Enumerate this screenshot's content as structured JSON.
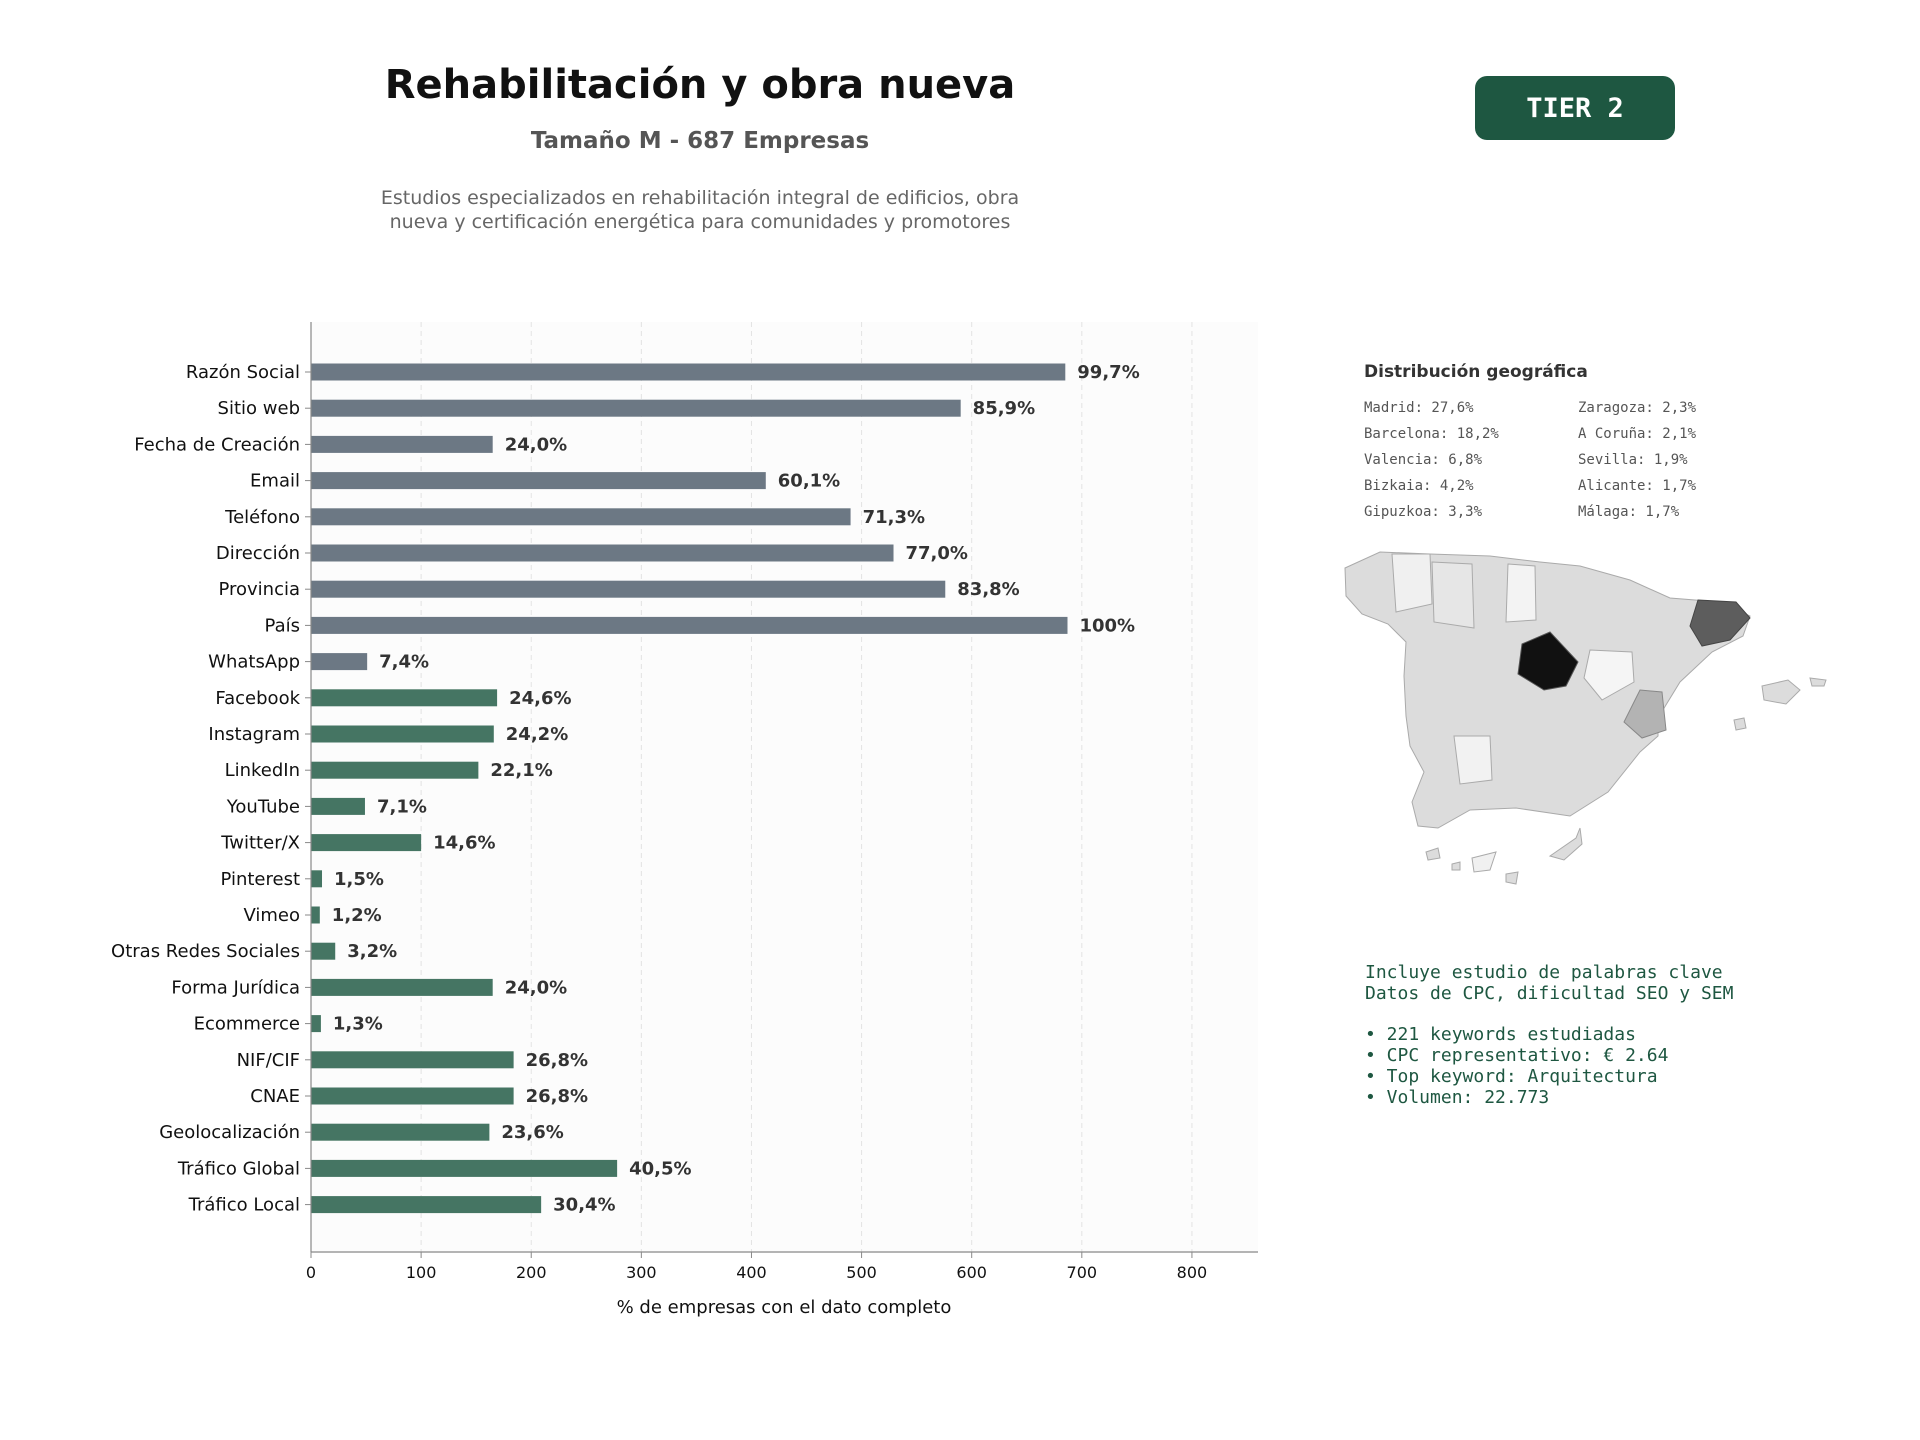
{
  "header": {
    "title": "Rehabilitación y obra nueva",
    "subtitle": "Tamaño M - 687 Empresas",
    "description_line1": "Estudios especializados en rehabilitación integral de edificios, obra",
    "description_line2": "nueva y certificación energética para comunidades y promotores",
    "tier_badge": "TIER 2"
  },
  "chart_data": {
    "type": "bar",
    "orientation": "horizontal",
    "title": "",
    "xlabel": "% de empresas con el dato completo",
    "ylabel": "",
    "xlim": [
      0,
      860
    ],
    "xticks": [
      0,
      100,
      200,
      300,
      400,
      500,
      600,
      700,
      800
    ],
    "grid": true,
    "categories": [
      "Razón Social",
      "Sitio web",
      "Fecha de Creación",
      "Email",
      "Teléfono",
      "Dirección",
      "Provincia",
      "País",
      "WhatsApp",
      "Facebook",
      "Instagram",
      "LinkedIn",
      "YouTube",
      "Twitter/X",
      "Pinterest",
      "Vimeo",
      "Otras Redes Sociales",
      "Forma Jurídica",
      "Ecommerce",
      "NIF/CIF",
      "CNAE",
      "Geolocalización",
      "Tráfico Global",
      "Tráfico Local"
    ],
    "values": [
      685,
      590,
      165,
      413,
      490,
      529,
      576,
      687,
      51,
      169,
      166,
      152,
      49,
      100,
      10,
      8,
      22,
      165,
      9,
      184,
      184,
      162,
      278,
      209
    ],
    "labels": [
      "99,7%",
      "85,9%",
      "24,0%",
      "60,1%",
      "71,3%",
      "77,0%",
      "83,8%",
      "100%",
      "7,4%",
      "24,6%",
      "24,2%",
      "22,1%",
      "7,1%",
      "14,6%",
      "1,5%",
      "1,2%",
      "3,2%",
      "24,0%",
      "1,3%",
      "26,8%",
      "26,8%",
      "23,6%",
      "40,5%",
      "30,4%"
    ],
    "colors": [
      "#6c7884",
      "#6c7884",
      "#6c7884",
      "#6c7884",
      "#6c7884",
      "#6c7884",
      "#6c7884",
      "#6c7884",
      "#6c7884",
      "#457563",
      "#457563",
      "#457563",
      "#457563",
      "#457563",
      "#457563",
      "#457563",
      "#457563",
      "#457563",
      "#457563",
      "#457563",
      "#457563",
      "#457563",
      "#457563",
      "#457563"
    ]
  },
  "geo": {
    "title": "Distribución geográfica",
    "items": [
      "Madrid: 27,6%",
      "Zaragoza: 2,3%",
      "Barcelona: 18,2%",
      "A Coruña: 2,1%",
      "Valencia: 6,8%",
      "Sevilla: 1,9%",
      "Bizkaia: 4,2%",
      "Alicante: 1,7%",
      "Gipuzkoa: 3,3%",
      "Málaga: 1,7%"
    ]
  },
  "keywords": {
    "line1": "Incluye estudio de palabras clave",
    "line2": "Datos de CPC, dificultad SEO y SEM",
    "bullets": [
      "• 221 keywords estudiadas",
      "• CPC representativo: € 2.64",
      "• Top keyword: Arquitectura",
      "• Volumen: 22.773"
    ]
  },
  "colors": {
    "accent": "#1e5741",
    "bar_gray": "#6c7884",
    "bar_green": "#457563"
  }
}
